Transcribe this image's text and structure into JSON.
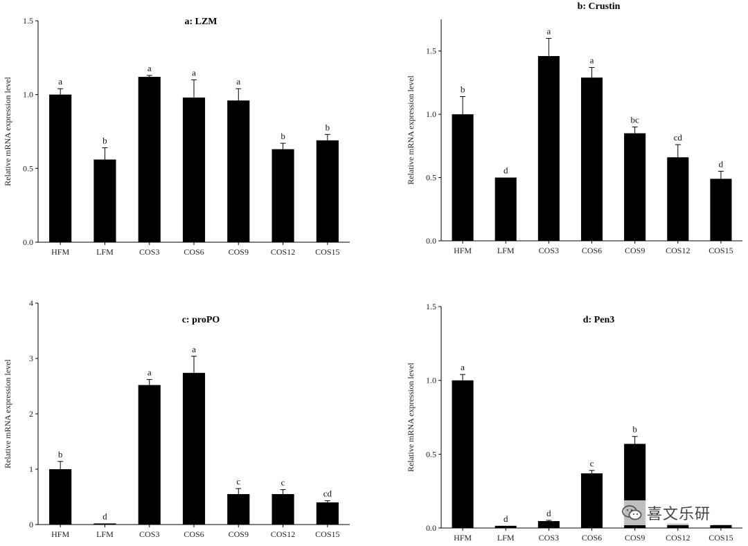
{
  "chart_data": [
    {
      "type": "bar",
      "title": "a: LZM",
      "ylabel": "Relative mRNA expression level",
      "categories": [
        "HFM",
        "LFM",
        "COS3",
        "COS6",
        "COS9",
        "COS12",
        "COS15"
      ],
      "values": [
        1.0,
        0.56,
        1.12,
        0.98,
        0.96,
        0.63,
        0.69
      ],
      "errors": [
        0.04,
        0.08,
        0.01,
        0.12,
        0.08,
        0.04,
        0.04
      ],
      "labels": [
        "a",
        "b",
        "a",
        "a",
        "a",
        "b",
        "b"
      ],
      "ylim": [
        0,
        1.5
      ],
      "yticks": [
        "0.0",
        "0.5",
        "1.0",
        "1.5"
      ],
      "colors": {
        "bar": "#000000"
      }
    },
    {
      "type": "bar",
      "title": "b: Crustin",
      "ylabel": "Relative mRNA expression level",
      "categories": [
        "HFM",
        "LFM",
        "COS3",
        "COS6",
        "COS9",
        "COS12",
        "COS15"
      ],
      "values": [
        1.0,
        0.5,
        1.46,
        1.29,
        0.85,
        0.66,
        0.49
      ],
      "errors": [
        0.14,
        0.0,
        0.14,
        0.08,
        0.05,
        0.1,
        0.06
      ],
      "labels": [
        "b",
        "d",
        "a",
        "a",
        "bc",
        "cd",
        "d"
      ],
      "ylim": [
        0,
        1.75
      ],
      "yticks": [
        "0.0",
        "0.5",
        "1.0",
        "1.5"
      ],
      "colors": {
        "bar": "#000000"
      }
    },
    {
      "type": "bar",
      "title": "c: proPO",
      "ylabel": "Relative mRNA expression level",
      "categories": [
        "HFM",
        "LFM",
        "COS3",
        "COS6",
        "COS9",
        "COS12",
        "COS15"
      ],
      "values": [
        1.0,
        0.02,
        2.52,
        2.74,
        0.55,
        0.55,
        0.4
      ],
      "errors": [
        0.14,
        0.0,
        0.1,
        0.3,
        0.1,
        0.08,
        0.03
      ],
      "labels": [
        "b",
        "d",
        "a",
        "a",
        "c",
        "c",
        "cd"
      ],
      "ylim": [
        0,
        4
      ],
      "yticks": [
        "0",
        "1",
        "2",
        "3",
        "4"
      ],
      "colors": {
        "bar": "#000000"
      }
    },
    {
      "type": "bar",
      "title": "d: Pen3",
      "ylabel": "Relative mRNA expression level",
      "categories": [
        "HFM",
        "LFM",
        "COS3",
        "COS6",
        "COS9",
        "COS12",
        "COS15"
      ],
      "values": [
        1.0,
        0.015,
        0.047,
        0.37,
        0.57,
        0.03,
        0.02
      ],
      "errors": [
        0.04,
        0.0,
        0.005,
        0.02,
        0.05,
        0.0,
        0.0
      ],
      "labels": [
        "a",
        "d",
        "d",
        "c",
        "b",
        "",
        ""
      ],
      "ylim": [
        0,
        1.5
      ],
      "yticks": [
        "0.0",
        "0.5",
        "1.0",
        "1.5"
      ],
      "colors": {
        "bar": "#000000"
      }
    }
  ],
  "watermark": {
    "text": "喜文乐研",
    "icon": "wechat-icon"
  }
}
